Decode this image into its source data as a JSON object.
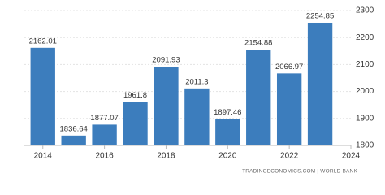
{
  "chart_data": {
    "type": "bar",
    "x": [
      2014,
      2015,
      2016,
      2017,
      2018,
      2019,
      2020,
      2021,
      2022,
      2023
    ],
    "values": [
      2162.01,
      1836.64,
      1877.07,
      1961.8,
      2091.93,
      2011.3,
      1897.46,
      2154.88,
      2066.97,
      2254.85
    ],
    "color": "#3c7dbd",
    "xlim": [
      2013.4,
      2024
    ],
    "xticks": [
      2014,
      2016,
      2018,
      2020,
      2022,
      2024
    ],
    "ylim": [
      1800,
      2300
    ],
    "yticks": [
      1800,
      1900,
      2000,
      2100,
      2200,
      2300
    ],
    "grid": true,
    "source": "TRADINGECONOMICS.COM | WORLD BANK"
  }
}
